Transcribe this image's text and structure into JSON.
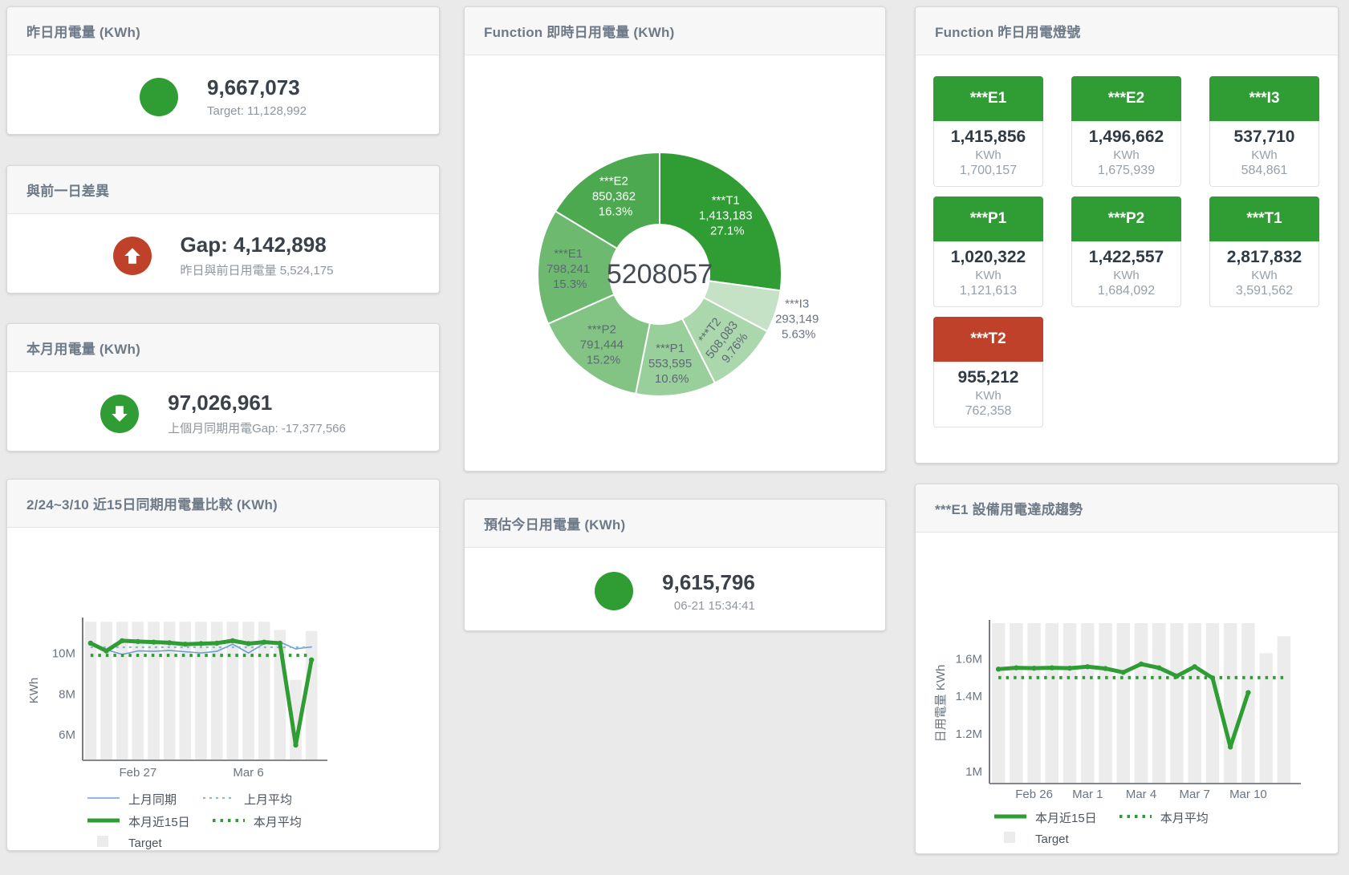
{
  "colors": {
    "green": "#2f9d33",
    "red": "#bf4129",
    "blue": "#6b9fd4",
    "blue_light": "#8ab4dd",
    "bar_gray": "#ececec",
    "value_text": "#3a4149",
    "muted_text": "#8e959d",
    "header_text": "#6e7a87"
  },
  "kpi_cards": [
    {
      "title": "昨日用電量 (KWh)",
      "icon": "circle",
      "icon_color": "#2f9d33",
      "value": "9,667,073",
      "subtitle": "Target: 11,128,992"
    },
    {
      "title": "與前一日差異",
      "icon": "arrow-up",
      "icon_color": "#bf4129",
      "value": "Gap: 4,142,898",
      "subtitle": "昨日與前日用電量 5,524,175"
    },
    {
      "title": "本月用電量 (KWh)",
      "icon": "arrow-down",
      "icon_color": "#2f9d33",
      "value": "97,026,961",
      "subtitle": "上個月同期用電Gap: -17,377,566"
    },
    {
      "title": "預估今日用電量 (KWh)",
      "icon": "circle",
      "icon_color": "#2f9d33",
      "value": "9,615,796",
      "subtitle": "06-21 15:34:41"
    }
  ],
  "lights": {
    "title": "Function 昨日用電燈號",
    "unit": "KWh",
    "tiles": [
      {
        "name": "***E1",
        "value": "1,415,856",
        "target": "1,700,157",
        "status_color": "#2f9d33"
      },
      {
        "name": "***E2",
        "value": "1,496,662",
        "target": "1,675,939",
        "status_color": "#2f9d33"
      },
      {
        "name": "***I3",
        "value": "537,710",
        "target": "584,861",
        "status_color": "#2f9d33"
      },
      {
        "name": "***P1",
        "value": "1,020,322",
        "target": "1,121,613",
        "status_color": "#2f9d33"
      },
      {
        "name": "***P2",
        "value": "1,422,557",
        "target": "1,684,092",
        "status_color": "#2f9d33"
      },
      {
        "name": "***T1",
        "value": "2,817,832",
        "target": "3,591,562",
        "status_color": "#2f9d33"
      },
      {
        "name": "***T2",
        "value": "955,212",
        "target": "762,358",
        "status_color": "#bf4129"
      }
    ]
  },
  "chart_data": [
    {
      "type": "pie",
      "title": "Function 即時日用電量 (KWh)",
      "donut": true,
      "center_total": "5208057",
      "start_angle_deg": 0,
      "clockwise": true,
      "slices": [
        {
          "label": "***T1",
          "value": 1413183,
          "display": "1,413,183",
          "pct": "27.1%",
          "color": "#2f9d33",
          "text": "#ffffff"
        },
        {
          "label": "***I3",
          "value": 293149,
          "display": "293,149",
          "pct": "5.63%",
          "color": "#c6e2c6",
          "text": "#6a7480",
          "label_outside": true
        },
        {
          "label": "***T2",
          "value": 508083,
          "display": "508,083",
          "pct": "9.76%",
          "color": "#abd7ac",
          "text": "#5d6974",
          "label_rotate": -52
        },
        {
          "label": "***P1",
          "value": 553595,
          "display": "553,595",
          "pct": "10.6%",
          "color": "#99cf9a",
          "text": "#5d6974"
        },
        {
          "label": "***P2",
          "value": 791444,
          "display": "791,444",
          "pct": "15.2%",
          "color": "#83c485",
          "text": "#5d6974"
        },
        {
          "label": "***E1",
          "value": 798241,
          "display": "798,241",
          "pct": "15.3%",
          "color": "#6cb96f",
          "text": "#5d6974"
        },
        {
          "label": "***E2",
          "value": 850362,
          "display": "850,362",
          "pct": "16.3%",
          "color": "#4ca950",
          "text": "#ffffff"
        }
      ]
    },
    {
      "type": "line",
      "title": "2/24~3/10 近15日同期用電量比較 (KWh)",
      "ylabel": "KWh",
      "ylim_millions": [
        4.75,
        11.6
      ],
      "yticks": [
        {
          "v": 6,
          "label": "6M"
        },
        {
          "v": 8,
          "label": "8M"
        },
        {
          "v": 10,
          "label": "10M"
        }
      ],
      "x": [
        "2/24",
        "2/25",
        "2/26",
        "2/27",
        "2/28",
        "3/1",
        "3/2",
        "3/3",
        "3/4",
        "3/5",
        "3/6",
        "3/7",
        "3/8",
        "3/9",
        "3/10"
      ],
      "x_tick_labels": [
        {
          "index": 3,
          "label": "Feb 27"
        },
        {
          "index": 10,
          "label": "Mar 6"
        }
      ],
      "bars": {
        "name": "Target",
        "color": "#ececec",
        "values_millions": [
          11.55,
          11.55,
          11.55,
          11.55,
          11.55,
          11.55,
          11.55,
          11.55,
          11.55,
          11.55,
          11.55,
          11.55,
          11.15,
          8.7,
          11.1
        ]
      },
      "series": [
        {
          "name": "上月同期",
          "color": "#6b9fd4",
          "width": 1.6,
          "values_millions": [
            10.42,
            10.18,
            9.95,
            10.12,
            10.1,
            10.14,
            10.08,
            10.02,
            10.1,
            10.45,
            10.02,
            10.48,
            10.55,
            10.22,
            10.32
          ]
        },
        {
          "name": "上月平均",
          "color": "#8ab4dd",
          "width": 2.2,
          "dash": "3 5",
          "constant_millions": 10.3
        },
        {
          "name": "本月近15日",
          "color": "#2f9d33",
          "width": 5,
          "markers": true,
          "values_millions": [
            10.5,
            10.12,
            10.62,
            10.58,
            10.55,
            10.52,
            10.45,
            10.48,
            10.5,
            10.62,
            10.48,
            10.55,
            10.5,
            5.5,
            9.68
          ]
        },
        {
          "name": "本月平均",
          "color": "#2f9d33",
          "width": 4,
          "dash": "3.5 6",
          "constant_millions": 9.9
        }
      ],
      "legend_grid": true,
      "legend_position": "bottom-left",
      "grid": false
    },
    {
      "type": "line",
      "title": "***E1 設備用電達成趨勢",
      "ylabel": "日用電量 KWh",
      "ylim_millions": [
        0.935,
        1.79
      ],
      "yticks": [
        {
          "v": 1,
          "label": "1M"
        },
        {
          "v": 1.2,
          "label": "1.2M"
        },
        {
          "v": 1.4,
          "label": "1.4M"
        },
        {
          "v": 1.6,
          "label": "1.6M"
        }
      ],
      "x": [
        "2/24",
        "2/25",
        "2/26",
        "2/27",
        "2/28",
        "3/1",
        "3/2",
        "3/3",
        "3/4",
        "3/5",
        "3/6",
        "3/7",
        "3/8",
        "3/9",
        "3/10",
        "3/11",
        "3/12"
      ],
      "x_tick_labels": [
        {
          "index": 2,
          "label": "Feb 26"
        },
        {
          "index": 5,
          "label": "Mar 1"
        },
        {
          "index": 8,
          "label": "Mar 4"
        },
        {
          "index": 11,
          "label": "Mar 7"
        },
        {
          "index": 14,
          "label": "Mar 10"
        }
      ],
      "bars": {
        "name": "Target",
        "color": "#ececec",
        "values_millions": [
          1.79,
          1.79,
          1.79,
          1.79,
          1.79,
          1.79,
          1.79,
          1.79,
          1.79,
          1.79,
          1.79,
          1.79,
          1.79,
          1.79,
          1.79,
          1.63,
          1.72
        ]
      },
      "series": [
        {
          "name": "本月近15日",
          "color": "#2f9d33",
          "width": 5,
          "markers": true,
          "values_millions": [
            1.545,
            1.552,
            1.55,
            1.552,
            1.55,
            1.558,
            1.548,
            1.528,
            1.572,
            1.552,
            1.508,
            1.558,
            1.498,
            1.13,
            1.42,
            null,
            null
          ]
        },
        {
          "name": "本月平均",
          "color": "#2f9d33",
          "width": 4,
          "dash": "3.5 6",
          "constant_millions": 1.5
        }
      ],
      "legend_grid": true,
      "legend_position": "bottom-left",
      "grid": false
    }
  ]
}
